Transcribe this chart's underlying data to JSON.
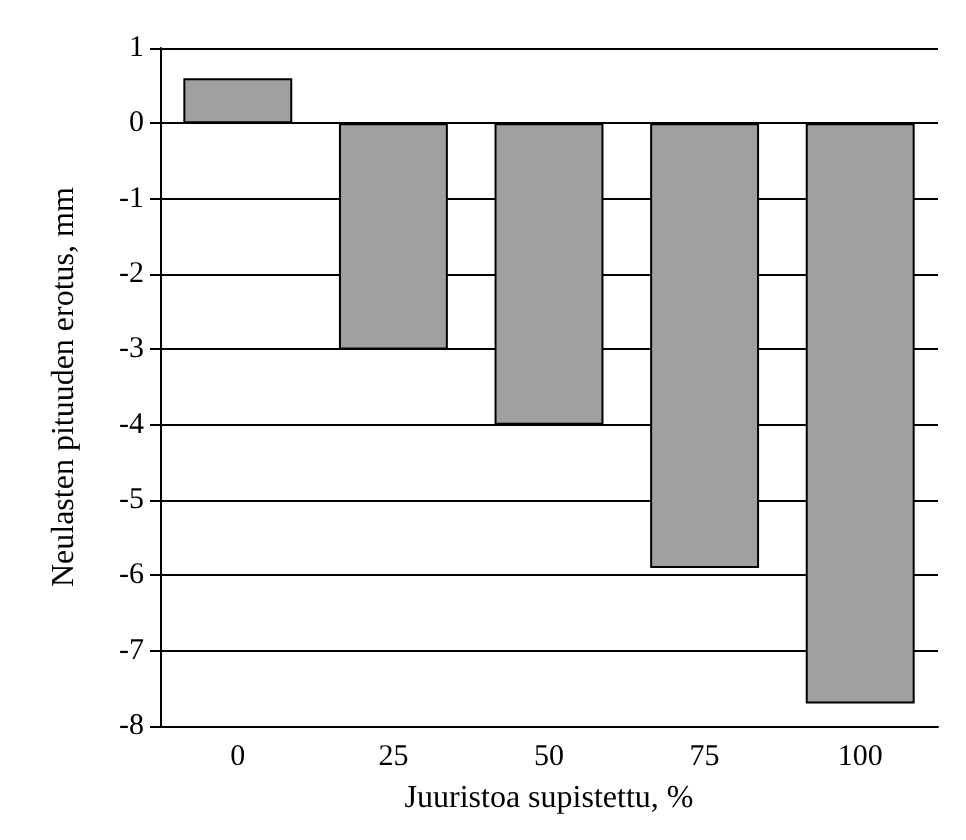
{
  "chart_data": {
    "type": "bar",
    "xlabel": "Juuristoa supistettu, %",
    "ylabel": "Neulasten pituuden erotus, mm",
    "categories": [
      "0",
      "25",
      "50",
      "75",
      "100"
    ],
    "values": [
      0.6,
      -3.0,
      -4.0,
      -5.9,
      -7.7
    ],
    "color": "#a0a0a0",
    "ylim": [
      -8,
      1
    ],
    "yticks": [
      -8,
      -7,
      -6,
      -5,
      -4,
      -3,
      -2,
      -1,
      0,
      1
    ],
    "grid": "y"
  }
}
